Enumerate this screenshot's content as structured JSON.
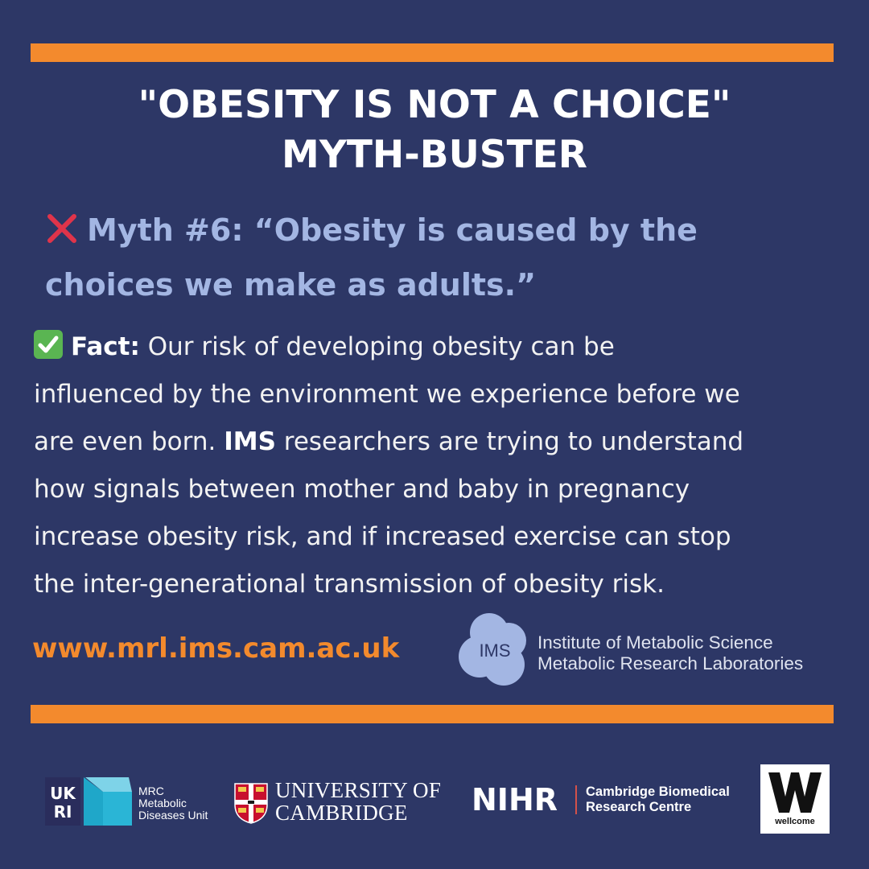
{
  "title": {
    "line1": "\"OBESITY IS NOT A CHOICE\"",
    "line2": "MYTH-BUSTER"
  },
  "myth": {
    "icon": "cross-mark-icon",
    "line1": "Myth #6: “Obesity is caused by the",
    "line2": "choices we make as adults.”"
  },
  "fact": {
    "icon": "check-mark-icon",
    "label": "Fact:",
    "line1_rest": " Our risk of developing obesity can be",
    "line2": "influenced by the environment we experience before we",
    "line3_pre": "are even born. ",
    "line3_bold": "IMS",
    "line3_rest": " researchers are trying to understand",
    "line4": "how signals between mother and baby in pregnancy",
    "line5": "increase obesity risk, and if increased exercise can stop",
    "line6": "the inter-generational transmission of obesity risk."
  },
  "url": "www.mrl.ims.cam.ac.uk",
  "ims": {
    "logo_text": "IMS",
    "line1": "Institute of Metabolic Science",
    "line2": "Metabolic Research Laboratories"
  },
  "partners": {
    "ukri_logo_text": "UKRI",
    "mrc_line1": "MRC",
    "mrc_line2": "Metabolic",
    "mrc_line3": "Diseases Unit",
    "cambridge_line1": "UNIVERSITY OF",
    "cambridge_line2": "CAMBRIDGE",
    "nihr_label": "NIHR",
    "nihr_line1": "Cambridge Biomedical",
    "nihr_line2": "Research Centre",
    "wellcome_label": "wellcome"
  },
  "colors": {
    "background": "#2d3766",
    "accent_orange": "#f38a2d",
    "myth_text": "#a3b6e3",
    "cross_red": "#e0344a",
    "check_green": "#5ab552",
    "ims_logo": "#a3b6e3"
  }
}
